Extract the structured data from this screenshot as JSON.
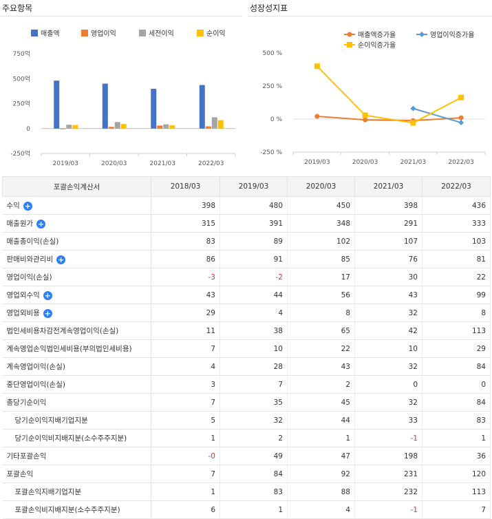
{
  "left_title": "주요항목",
  "right_title": "성장성지표",
  "chart_data": [
    {
      "type": "bar",
      "title": "주요항목",
      "categories": [
        "2019/03",
        "2020/03",
        "2021/03",
        "2022/03"
      ],
      "ylim": [
        -250,
        750
      ],
      "yticks": [
        750,
        500,
        250,
        0,
        -250
      ],
      "ytick_labels": [
        "750억",
        "500억",
        "250억",
        "0",
        "-250억"
      ],
      "legend_position": "top",
      "series": [
        {
          "name": "매출액",
          "color": "#4472c4",
          "values": [
            480,
            450,
            398,
            436
          ]
        },
        {
          "name": "영업이익",
          "color": "#ed7d31",
          "values": [
            -2,
            17,
            30,
            22
          ]
        },
        {
          "name": "세전이익",
          "color": "#a5a5a5",
          "values": [
            38,
            65,
            42,
            113
          ]
        },
        {
          "name": "순이익",
          "color": "#ffc000",
          "values": [
            35,
            45,
            32,
            84
          ]
        }
      ]
    },
    {
      "type": "line",
      "title": "성장성지표",
      "categories": [
        "2019/03",
        "2020/03",
        "2021/03",
        "2022/03"
      ],
      "ylim": [
        -250,
        500
      ],
      "yticks": [
        500,
        250,
        0,
        -250
      ],
      "ytick_labels": [
        "500 %",
        "250 %",
        "0 %",
        "-250 %"
      ],
      "legend_position": "top",
      "series": [
        {
          "name": "매출액증가율",
          "color": "#ed7d31",
          "marker": "circle",
          "values": [
            21,
            -6,
            -12,
            10
          ]
        },
        {
          "name": "영업이익증가율",
          "color": "#5b9bd5",
          "marker": "diamond",
          "values": [
            null,
            null,
            80,
            -27
          ]
        },
        {
          "name": "순이익증가율",
          "color": "#ffc000",
          "marker": "square",
          "values": [
            400,
            29,
            -29,
            163
          ]
        }
      ]
    }
  ],
  "table": {
    "header": [
      "포괄손익계산서",
      "2018/03",
      "2019/03",
      "2020/03",
      "2021/03",
      "2022/03"
    ],
    "rows": [
      {
        "label": "수익",
        "expand": true,
        "values": [
          "398",
          "480",
          "450",
          "398",
          "436"
        ]
      },
      {
        "label": "매출원가",
        "expand": true,
        "values": [
          "315",
          "391",
          "348",
          "291",
          "333"
        ]
      },
      {
        "label": "매출총이익(손실)",
        "values": [
          "83",
          "89",
          "102",
          "107",
          "103"
        ]
      },
      {
        "label": "판매비와관리비",
        "expand": true,
        "values": [
          "86",
          "91",
          "85",
          "76",
          "81"
        ]
      },
      {
        "label": "영업이익(손실)",
        "values": [
          "-3",
          "-2",
          "17",
          "30",
          "22"
        ]
      },
      {
        "label": "영업외수익",
        "expand": true,
        "values": [
          "43",
          "44",
          "56",
          "43",
          "99"
        ]
      },
      {
        "label": "영업외비용",
        "expand": true,
        "values": [
          "29",
          "4",
          "8",
          "32",
          "8"
        ]
      },
      {
        "label": "법인세비용차감전계속영업이익(손실)",
        "values": [
          "11",
          "38",
          "65",
          "42",
          "113"
        ]
      },
      {
        "label": "계속영업손익법인세비용(부의법인세비용)",
        "values": [
          "7",
          "10",
          "22",
          "10",
          "29"
        ]
      },
      {
        "label": "계속영업이익(손실)",
        "values": [
          "4",
          "28",
          "43",
          "32",
          "84"
        ]
      },
      {
        "label": "중단영업이익(손실)",
        "values": [
          "3",
          "7",
          "2",
          "0",
          "0"
        ]
      },
      {
        "label": "총당기순이익",
        "values": [
          "7",
          "35",
          "45",
          "32",
          "84"
        ]
      },
      {
        "label": "당기순이익지배기업지분",
        "sub": true,
        "values": [
          "5",
          "32",
          "44",
          "33",
          "83"
        ]
      },
      {
        "label": "당기순이익비지배지분(소수주주지분)",
        "sub": true,
        "values": [
          "1",
          "2",
          "1",
          "-1",
          "1"
        ]
      },
      {
        "label": "기타포괄손익",
        "values": [
          "-0",
          "49",
          "47",
          "198",
          "36"
        ]
      },
      {
        "label": "포괄손익",
        "values": [
          "7",
          "84",
          "92",
          "231",
          "120"
        ]
      },
      {
        "label": "포괄손익지배기업지분",
        "sub": true,
        "values": [
          "1",
          "83",
          "88",
          "232",
          "113"
        ]
      },
      {
        "label": "포괄손익비지배지분(소수주주지분)",
        "sub": true,
        "values": [
          "6",
          "1",
          "4",
          "-1",
          "7"
        ]
      }
    ]
  }
}
